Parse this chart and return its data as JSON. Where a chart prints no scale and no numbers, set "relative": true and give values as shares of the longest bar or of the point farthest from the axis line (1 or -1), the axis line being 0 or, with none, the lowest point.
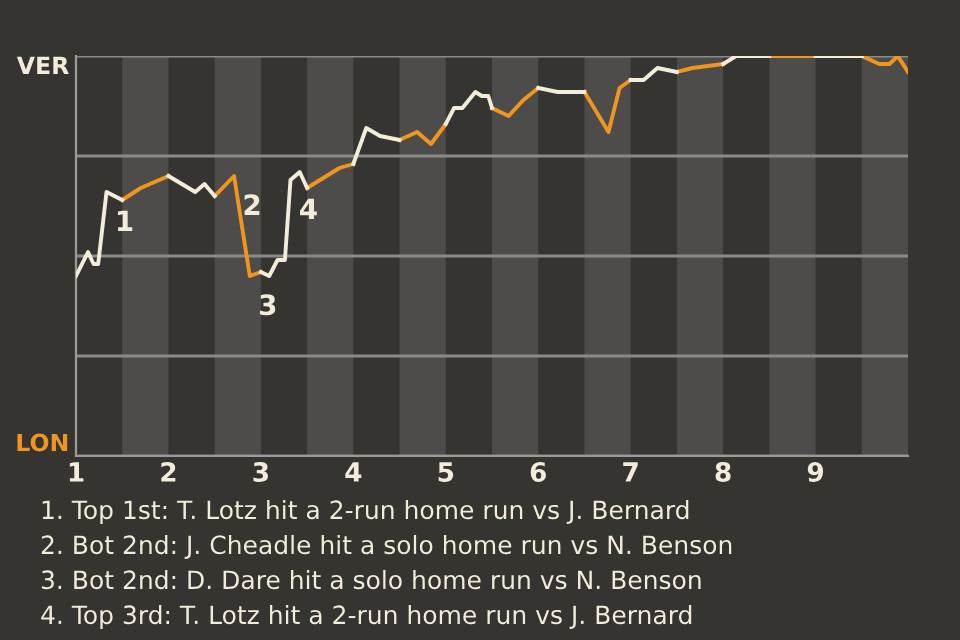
{
  "chart_data": {
    "type": "line",
    "relative": true,
    "x": [
      1.0,
      1.13,
      1.19,
      1.24,
      1.33,
      1.5,
      1.7,
      2.0,
      2.29,
      2.39,
      2.5,
      2.71,
      2.88,
      3.0,
      3.09,
      3.18,
      3.26,
      3.32,
      3.42,
      3.5,
      3.85,
      4.0,
      4.14,
      4.29,
      4.5,
      4.69,
      4.84,
      5.0,
      5.09,
      5.18,
      5.32,
      5.39,
      5.46,
      5.5,
      5.68,
      5.84,
      6.0,
      6.21,
      6.5,
      6.76,
      6.88,
      7.0,
      7.14,
      7.29,
      7.5,
      7.67,
      8.0,
      8.14,
      8.4,
      8.46,
      8.5,
      8.72,
      8.77,
      9.0,
      9.5,
      9.69,
      9.8,
      9.89,
      10.0
    ],
    "series": [
      {
        "name": "VER",
        "color": "#f2ecd8",
        "values": [
          0.45,
          0.51,
          0.48,
          0.48,
          0.66,
          0.64,
          null,
          0.7,
          0.66,
          0.68,
          0.65,
          null,
          null,
          0.46,
          0.45,
          0.49,
          0.49,
          0.69,
          0.71,
          0.67,
          null,
          0.73,
          0.82,
          0.8,
          0.79,
          null,
          null,
          0.83,
          0.87,
          0.87,
          0.91,
          0.9,
          0.9,
          0.87,
          null,
          null,
          0.92,
          0.91,
          0.91,
          null,
          null,
          0.94,
          0.94,
          0.97,
          0.96,
          null,
          0.98,
          1.0,
          1.0,
          1.0,
          1.0,
          null,
          null,
          1.0,
          1.0,
          null,
          null,
          null,
          null
        ]
      },
      {
        "name": "LON",
        "color": "#f0961e",
        "values": [
          null,
          null,
          null,
          null,
          null,
          0.64,
          0.67,
          0.7,
          null,
          null,
          0.65,
          0.7,
          0.45,
          0.46,
          null,
          null,
          null,
          null,
          null,
          0.67,
          0.72,
          0.73,
          null,
          null,
          0.79,
          0.81,
          0.78,
          0.83,
          null,
          null,
          null,
          null,
          null,
          0.87,
          0.85,
          0.89,
          0.92,
          null,
          0.91,
          0.81,
          0.92,
          0.94,
          null,
          null,
          0.96,
          0.97,
          0.98,
          null,
          null,
          null,
          1.0,
          1.0,
          1.0,
          1.0,
          1.0,
          0.98,
          0.98,
          1.0,
          0.96
        ]
      }
    ],
    "xlim": [
      1,
      10
    ],
    "xticks": [
      1,
      2,
      3,
      4,
      5,
      6,
      7,
      8,
      9
    ],
    "grid": "y",
    "marker": "none",
    "line_style": "solid",
    "bands": [
      {
        "axis": "x",
        "from": 1.5,
        "to": 2,
        "color": "#4d4c4a"
      },
      {
        "axis": "x",
        "from": 2.5,
        "to": 3,
        "color": "#4d4c4a"
      },
      {
        "axis": "x",
        "from": 3.5,
        "to": 4,
        "color": "#4d4c4a"
      },
      {
        "axis": "x",
        "from": 4.5,
        "to": 5,
        "color": "#4d4c4a"
      },
      {
        "axis": "x",
        "from": 5.5,
        "to": 6,
        "color": "#4d4c4a"
      },
      {
        "axis": "x",
        "from": 6.5,
        "to": 7,
        "color": "#4d4c4a"
      },
      {
        "axis": "x",
        "from": 7.5,
        "to": 8,
        "color": "#4d4c4a"
      },
      {
        "axis": "x",
        "from": 8.5,
        "to": 9,
        "color": "#4d4c4a"
      },
      {
        "axis": "x",
        "from": 9.5,
        "to": 10,
        "color": "#4d4c4a"
      }
    ],
    "annotations": [
      {
        "text": "1",
        "x": 1.33,
        "y": 0.66
      },
      {
        "text": "2",
        "x": 2.71,
        "y": 0.7
      },
      {
        "text": "3",
        "x": 2.88,
        "y": 0.45
      },
      {
        "text": "4",
        "x": 3.32,
        "y": 0.69
      },
      "1. Top 1st: T. Lotz hit a 2-run home run vs J. Bernard",
      "2. Bot 2nd: J. Cheadle hit a solo home run vs N. Benson",
      "3. Bot 2nd: D. Dare hit a solo home run vs N. Benson",
      "4. Top 3rd: T. Lotz hit a 2-run home run vs J. Bernard"
    ]
  }
}
